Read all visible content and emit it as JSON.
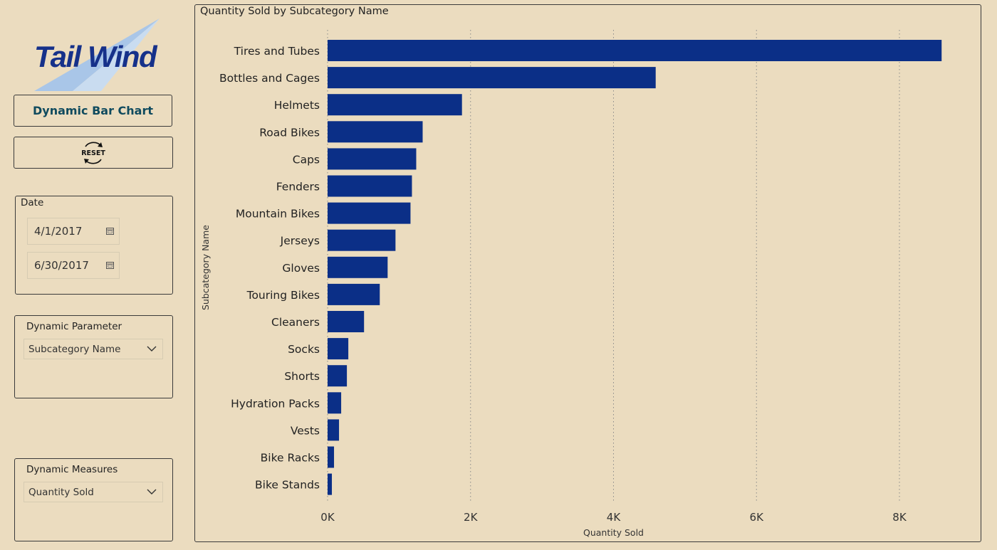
{
  "logo": {
    "text": "Tail Wind",
    "colors": {
      "text": "#16318a",
      "wing": "#a9c6e8"
    }
  },
  "title_button": {
    "label": "Dynamic Bar Chart"
  },
  "reset_button": {
    "label": "RESET",
    "icon": "refresh-icon"
  },
  "date_slicer": {
    "title": "Date",
    "start": "4/1/2017",
    "end": "6/30/2017",
    "icon": "calendar-icon"
  },
  "parameter_slicer": {
    "title": "Dynamic Parameter",
    "selected": "Subcategory Name"
  },
  "measure_slicer": {
    "title": "Dynamic Measures",
    "selected": "Quantity Sold"
  },
  "colors": {
    "background": "#ebdcbf",
    "bar": "#0b2f87",
    "border": "#3a3a3a"
  },
  "chart_data": {
    "type": "bar",
    "orientation": "horizontal",
    "title": "Quantity Sold by Subcategory Name",
    "xlabel": "Quantity Sold",
    "ylabel": "Subcategory Name",
    "xlim": [
      0,
      8600
    ],
    "xticks": [
      0,
      2000,
      4000,
      6000,
      8000
    ],
    "xtick_labels": [
      "0K",
      "2K",
      "4K",
      "6K",
      "8K"
    ],
    "grid": "vertical dotted",
    "categories": [
      "Tires and Tubes",
      "Bottles and Cages",
      "Helmets",
      "Road Bikes",
      "Caps",
      "Fenders",
      "Mountain Bikes",
      "Jerseys",
      "Gloves",
      "Touring Bikes",
      "Cleaners",
      "Socks",
      "Shorts",
      "Hydration Packs",
      "Vests",
      "Bike Racks",
      "Bike Stands"
    ],
    "values": [
      8590,
      4590,
      1880,
      1330,
      1240,
      1180,
      1160,
      950,
      840,
      730,
      510,
      290,
      270,
      190,
      160,
      90,
      60
    ]
  }
}
